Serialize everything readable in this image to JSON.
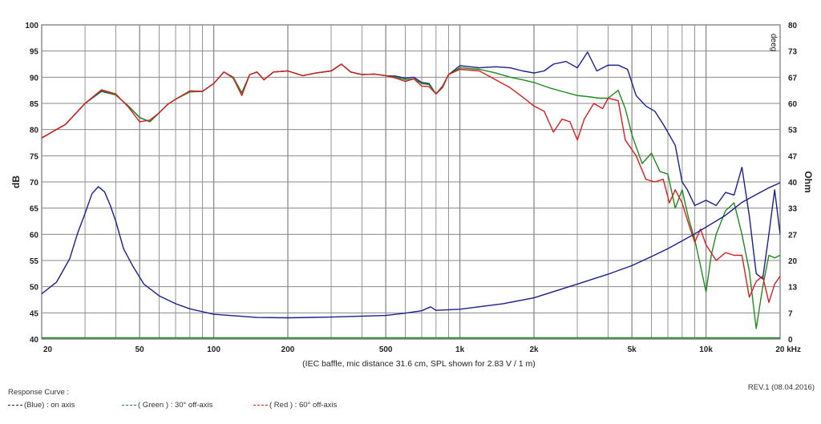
{
  "chart_data": {
    "type": "line",
    "title": "",
    "caption": "(IEC baffle, mic distance 31.6 cm, SPL shown for 2.83 V / 1 m)",
    "ylabel_left": "dB",
    "ylabel_right": "Ohm",
    "xlim": [
      20,
      20000
    ],
    "x_scale": "log",
    "ylim_left": [
      40,
      100
    ],
    "ylim_right": [
      0,
      80
    ],
    "grid": true,
    "x_tick_labels": [
      {
        "x": 20,
        "label": "20"
      },
      {
        "x": 50,
        "label": "50"
      },
      {
        "x": 100,
        "label": "100"
      },
      {
        "x": 200,
        "label": "200"
      },
      {
        "x": 500,
        "label": "500"
      },
      {
        "x": 1000,
        "label": "1k"
      },
      {
        "x": 2000,
        "label": "2k"
      },
      {
        "x": 5000,
        "label": "5k"
      },
      {
        "x": 10000,
        "label": "10k"
      },
      {
        "x": 20000,
        "label": "20 kHz"
      }
    ],
    "y_ticks_left": [
      100,
      95,
      90,
      85,
      80,
      75,
      70,
      65,
      60,
      55,
      50,
      45,
      40
    ],
    "y_ticks_right": [
      80,
      73,
      67,
      60,
      53,
      47,
      40,
      33,
      27,
      20,
      13,
      7,
      0
    ],
    "series": [
      {
        "name": "on axis",
        "color": "#1b1f8a",
        "axis": "left",
        "points": [
          [
            20,
            78.4
          ],
          [
            25,
            81
          ],
          [
            30,
            85
          ],
          [
            35,
            87.3
          ],
          [
            40,
            86.6
          ],
          [
            45,
            84.5
          ],
          [
            50,
            82.3
          ],
          [
            55,
            81.5
          ],
          [
            60,
            83.2
          ],
          [
            65,
            84.8
          ],
          [
            70,
            85.8
          ],
          [
            80,
            87.2
          ],
          [
            90,
            87.3
          ],
          [
            100,
            88.8
          ],
          [
            110,
            91
          ],
          [
            120,
            90
          ],
          [
            130,
            87
          ],
          [
            140,
            90.5
          ],
          [
            150,
            91
          ],
          [
            160,
            89.5
          ],
          [
            175,
            91
          ],
          [
            200,
            91.2
          ],
          [
            230,
            90.3
          ],
          [
            260,
            90.8
          ],
          [
            300,
            91.2
          ],
          [
            330,
            92.5
          ],
          [
            360,
            91
          ],
          [
            400,
            90.5
          ],
          [
            450,
            90.6
          ],
          [
            500,
            90.3
          ],
          [
            550,
            90.2
          ],
          [
            600,
            89.8
          ],
          [
            650,
            90
          ],
          [
            700,
            89
          ],
          [
            750,
            88.8
          ],
          [
            800,
            86.8
          ],
          [
            850,
            88.3
          ],
          [
            900,
            90.5
          ],
          [
            1000,
            92.2
          ],
          [
            1100,
            92
          ],
          [
            1200,
            91.8
          ],
          [
            1400,
            92
          ],
          [
            1600,
            91.8
          ],
          [
            1800,
            91.2
          ],
          [
            2000,
            90.8
          ],
          [
            2200,
            91.2
          ],
          [
            2400,
            92.5
          ],
          [
            2700,
            93
          ],
          [
            3000,
            91.8
          ],
          [
            3300,
            94.8
          ],
          [
            3600,
            91.2
          ],
          [
            4000,
            92.3
          ],
          [
            4400,
            92.3
          ],
          [
            4800,
            91.5
          ],
          [
            5200,
            86.5
          ],
          [
            5700,
            84.5
          ],
          [
            6200,
            83.5
          ],
          [
            6800,
            80.5
          ],
          [
            7500,
            77
          ],
          [
            8000,
            70
          ],
          [
            8400,
            68.5
          ],
          [
            9000,
            65.5
          ],
          [
            10000,
            66.5
          ],
          [
            11000,
            65.5
          ],
          [
            12000,
            68
          ],
          [
            13000,
            67.5
          ],
          [
            14000,
            72.8
          ],
          [
            15000,
            63.5
          ],
          [
            16000,
            52.5
          ],
          [
            17000,
            51.5
          ],
          [
            18000,
            60
          ],
          [
            19000,
            68.5
          ],
          [
            20000,
            60
          ]
        ]
      },
      {
        "name": "30° off-axis",
        "color": "#1e8a1e",
        "axis": "left",
        "points": [
          [
            20,
            78.4
          ],
          [
            25,
            81
          ],
          [
            30,
            85
          ],
          [
            35,
            87.4
          ],
          [
            40,
            86.6
          ],
          [
            45,
            84.5
          ],
          [
            50,
            82.3
          ],
          [
            55,
            81.5
          ],
          [
            60,
            83.2
          ],
          [
            65,
            84.8
          ],
          [
            70,
            85.8
          ],
          [
            80,
            87.2
          ],
          [
            90,
            87.3
          ],
          [
            100,
            88.8
          ],
          [
            110,
            91
          ],
          [
            120,
            90
          ],
          [
            130,
            87
          ],
          [
            140,
            90.5
          ],
          [
            150,
            91
          ],
          [
            160,
            89.5
          ],
          [
            175,
            91
          ],
          [
            200,
            91.2
          ],
          [
            230,
            90.3
          ],
          [
            260,
            90.8
          ],
          [
            300,
            91.2
          ],
          [
            330,
            92.5
          ],
          [
            360,
            91
          ],
          [
            400,
            90.5
          ],
          [
            450,
            90.6
          ],
          [
            500,
            90.3
          ],
          [
            550,
            90
          ],
          [
            600,
            89.5
          ],
          [
            650,
            89.7
          ],
          [
            700,
            88.8
          ],
          [
            750,
            88.6
          ],
          [
            800,
            86.8
          ],
          [
            850,
            88.2
          ],
          [
            900,
            90.5
          ],
          [
            1000,
            91.8
          ],
          [
            1200,
            91.5
          ],
          [
            1400,
            90.8
          ],
          [
            1600,
            90
          ],
          [
            1800,
            89.5
          ],
          [
            2000,
            89
          ],
          [
            2300,
            88
          ],
          [
            2600,
            87.3
          ],
          [
            3000,
            86.5
          ],
          [
            3300,
            86.3
          ],
          [
            3700,
            86
          ],
          [
            4000,
            86
          ],
          [
            4400,
            87.5
          ],
          [
            4700,
            84
          ],
          [
            5000,
            79
          ],
          [
            5500,
            73.5
          ],
          [
            6000,
            75.5
          ],
          [
            6500,
            72
          ],
          [
            7000,
            71.5
          ],
          [
            7500,
            65
          ],
          [
            8000,
            68.5
          ],
          [
            8500,
            63
          ],
          [
            9000,
            59
          ],
          [
            9500,
            54
          ],
          [
            10000,
            49
          ],
          [
            10500,
            56
          ],
          [
            11000,
            60
          ],
          [
            12000,
            64.5
          ],
          [
            13000,
            66
          ],
          [
            14000,
            60
          ],
          [
            15000,
            53
          ],
          [
            16000,
            42
          ],
          [
            17000,
            50
          ],
          [
            18000,
            56
          ],
          [
            19000,
            55.5
          ],
          [
            20000,
            56
          ]
        ]
      },
      {
        "name": "60° off-axis",
        "color": "#d61f1f",
        "axis": "left",
        "points": [
          [
            20,
            78.4
          ],
          [
            25,
            81
          ],
          [
            30,
            85
          ],
          [
            35,
            87.6
          ],
          [
            40,
            86.8
          ],
          [
            45,
            84.3
          ],
          [
            50,
            81.5
          ],
          [
            55,
            81.8
          ],
          [
            60,
            83.2
          ],
          [
            65,
            84.8
          ],
          [
            70,
            85.8
          ],
          [
            80,
            87.4
          ],
          [
            90,
            87.3
          ],
          [
            100,
            88.8
          ],
          [
            110,
            91
          ],
          [
            120,
            89.8
          ],
          [
            130,
            86.5
          ],
          [
            140,
            90.5
          ],
          [
            150,
            91
          ],
          [
            160,
            89.5
          ],
          [
            175,
            91
          ],
          [
            200,
            91.2
          ],
          [
            230,
            90.3
          ],
          [
            260,
            90.8
          ],
          [
            300,
            91.2
          ],
          [
            330,
            92.5
          ],
          [
            360,
            91
          ],
          [
            400,
            90.5
          ],
          [
            450,
            90.6
          ],
          [
            500,
            90.3
          ],
          [
            550,
            89.8
          ],
          [
            600,
            89.2
          ],
          [
            650,
            89.7
          ],
          [
            700,
            88.3
          ],
          [
            750,
            88.2
          ],
          [
            800,
            86.8
          ],
          [
            850,
            88
          ],
          [
            900,
            90.5
          ],
          [
            1000,
            91.5
          ],
          [
            1200,
            91.2
          ],
          [
            1400,
            89.5
          ],
          [
            1600,
            88
          ],
          [
            1800,
            86.2
          ],
          [
            2000,
            84.5
          ],
          [
            2200,
            83.5
          ],
          [
            2400,
            79.5
          ],
          [
            2600,
            82
          ],
          [
            2800,
            81.5
          ],
          [
            3000,
            78
          ],
          [
            3200,
            82
          ],
          [
            3500,
            85
          ],
          [
            3800,
            84
          ],
          [
            4000,
            86
          ],
          [
            4400,
            85.5
          ],
          [
            4700,
            78
          ],
          [
            5200,
            75
          ],
          [
            5700,
            70.5
          ],
          [
            6200,
            70
          ],
          [
            6700,
            70.5
          ],
          [
            7100,
            66
          ],
          [
            7500,
            68.5
          ],
          [
            8000,
            66
          ],
          [
            8500,
            62
          ],
          [
            9000,
            58.5
          ],
          [
            9500,
            61
          ],
          [
            10000,
            58
          ],
          [
            11000,
            55
          ],
          [
            12000,
            56.5
          ],
          [
            13000,
            56
          ],
          [
            14000,
            56
          ],
          [
            15000,
            48
          ],
          [
            16000,
            51
          ],
          [
            17000,
            52
          ],
          [
            18000,
            47
          ],
          [
            19000,
            50.5
          ],
          [
            20000,
            52
          ]
        ]
      },
      {
        "name": "impedance",
        "color": "#1b1f8a",
        "axis": "right",
        "points": [
          [
            20,
            11.5
          ],
          [
            23,
            14.5
          ],
          [
            26,
            20.5
          ],
          [
            28,
            27
          ],
          [
            30,
            32
          ],
          [
            32,
            37
          ],
          [
            34,
            38.8
          ],
          [
            36,
            37.5
          ],
          [
            38,
            34
          ],
          [
            40,
            30
          ],
          [
            43,
            23
          ],
          [
            47,
            18.5
          ],
          [
            52,
            14
          ],
          [
            60,
            11
          ],
          [
            70,
            9
          ],
          [
            80,
            7.7
          ],
          [
            100,
            6.3
          ],
          [
            150,
            5.5
          ],
          [
            200,
            5.4
          ],
          [
            300,
            5.6
          ],
          [
            500,
            6
          ],
          [
            600,
            6.6
          ],
          [
            700,
            7.2
          ],
          [
            760,
            8.2
          ],
          [
            800,
            7.3
          ],
          [
            1000,
            7.6
          ],
          [
            1500,
            9
          ],
          [
            2000,
            10.5
          ],
          [
            3000,
            14
          ],
          [
            4000,
            16.5
          ],
          [
            5000,
            18.7
          ],
          [
            6000,
            21
          ],
          [
            7000,
            23
          ],
          [
            8000,
            25
          ],
          [
            9000,
            26.8
          ],
          [
            10000,
            28.5
          ],
          [
            12000,
            31.5
          ],
          [
            14000,
            34.8
          ],
          [
            16000,
            36.8
          ],
          [
            18000,
            38.5
          ],
          [
            20000,
            39.8
          ]
        ]
      },
      {
        "name": "baseline",
        "color": "#1e8a1e",
        "axis": "right",
        "points": [
          [
            20,
            0.3
          ],
          [
            20000,
            0.3
          ]
        ]
      }
    ]
  },
  "legend": {
    "heading": "Response Curve :",
    "items": [
      {
        "label": "(Blue) : on axis",
        "color": "#1b1f8a"
      },
      {
        "label": "( Green ) : 30° off-axis",
        "color": "#1e8a1e"
      },
      {
        "label": "( Red ) : 60° off-axis",
        "color": "#d61f1f"
      }
    ]
  },
  "revision": "REV.1 (08.04.2016)",
  "corner_tag": "deeg"
}
